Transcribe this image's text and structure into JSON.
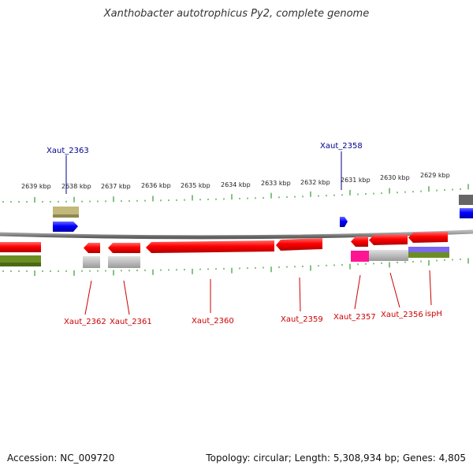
{
  "title": "Xanthobacter autotrophicus Py2, complete genome",
  "footer": {
    "accession": "Accession: NC_009720",
    "info": "Topology: circular; Length: 5,308,934 bp; Genes: 4,805"
  },
  "colors": {
    "backbone": "#8c8c8c",
    "forward_cds": "#0000ff",
    "reverse_cds": "#ff0000",
    "forward_label": "#00008b",
    "reverse_label": "#cc0000",
    "tick_top": "#339933",
    "tick_bottom": "#339933"
  },
  "ruler_labels": [
    "2639 kbp",
    "2638 kbp",
    "2637 kbp",
    "2636 kbp",
    "2635 kbp",
    "2634 kbp",
    "2633 kbp",
    "2632 kbp",
    "2631 kbp",
    "2630 kbp",
    "2629 kbp"
  ],
  "gene_labels_top": [
    "Xaut_2363",
    "Xaut_2358"
  ],
  "gene_labels_bottom": [
    "Xaut_2362",
    "Xaut_2361",
    "Xaut_2360",
    "Xaut_2359",
    "Xaut_2357",
    "Xaut_2356",
    "ispH"
  ]
}
